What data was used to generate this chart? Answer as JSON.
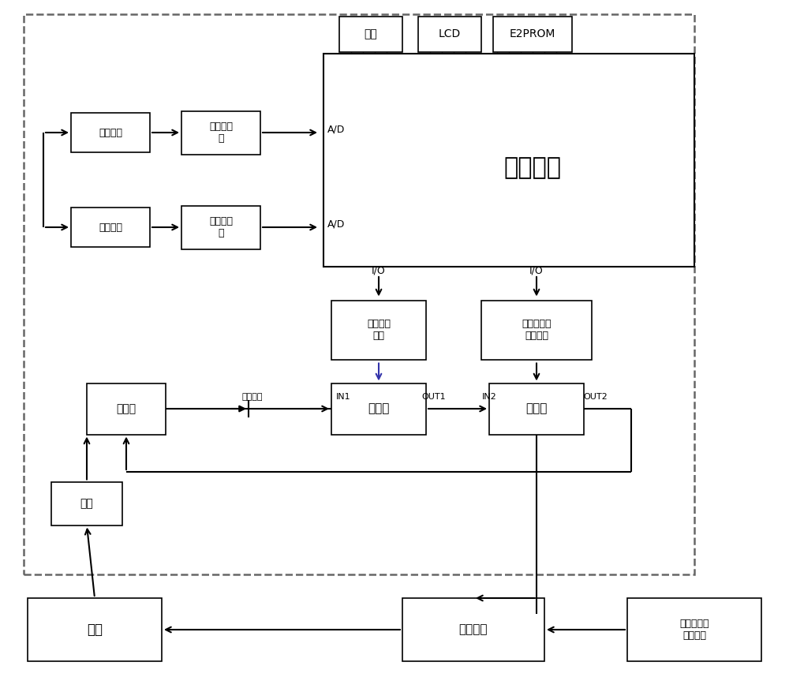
{
  "bg_color": "#ffffff",
  "labels": {
    "keyboard": "键盘",
    "lcd": "LCD",
    "e2prom": "E2PROM",
    "main_ctrl": "主控制器",
    "voltage_signal": "电压信号",
    "voltage_collector": "电压采集\n器",
    "current_signal": "电流信号",
    "current_collector": "电流采集\n器",
    "relay_driver": "继电驱动\n单元",
    "trip_driver": "可延时脱扣\n驱动单元",
    "dc_power": "直流电",
    "dc_bus": "直流母线",
    "relay": "继电器",
    "tripper": "脱扣器",
    "rectifier": "整流",
    "grid": "电网",
    "grid_switch": "并网开关",
    "pv_system": "分布式光伏\n发电系统",
    "ad1": "A/D",
    "ad2": "A/D",
    "io1": "I/O",
    "io2": "I/O",
    "in1": "IN1",
    "out1": "OUT1",
    "in2": "IN2",
    "out2": "OUT2"
  }
}
